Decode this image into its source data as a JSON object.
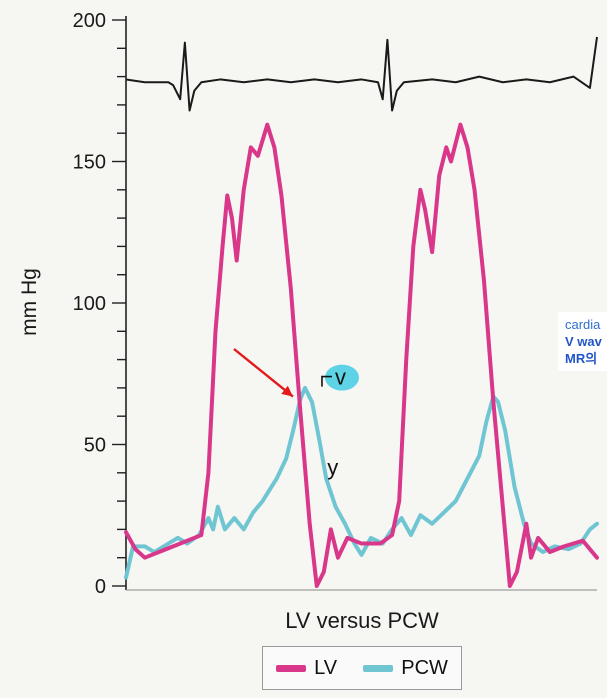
{
  "chart_data": {
    "type": "line",
    "title": "",
    "xlabel": "LV versus PCW",
    "ylabel": "mm Hg",
    "ylim": [
      0,
      200
    ],
    "yticks": [
      0,
      50,
      100,
      150,
      200
    ],
    "grid": false,
    "legend_placement": "bottom-center",
    "series": [
      {
        "name": "LV",
        "color": "#d9378a",
        "points": [
          [
            0,
            19
          ],
          [
            0.02,
            13
          ],
          [
            0.04,
            10
          ],
          [
            0.07,
            12
          ],
          [
            0.1,
            14
          ],
          [
            0.13,
            16
          ],
          [
            0.16,
            18
          ],
          [
            0.175,
            40
          ],
          [
            0.19,
            90
          ],
          [
            0.205,
            120
          ],
          [
            0.215,
            138
          ],
          [
            0.225,
            130
          ],
          [
            0.235,
            115
          ],
          [
            0.25,
            140
          ],
          [
            0.265,
            155
          ],
          [
            0.28,
            152
          ],
          [
            0.3,
            163
          ],
          [
            0.315,
            155
          ],
          [
            0.33,
            138
          ],
          [
            0.35,
            105
          ],
          [
            0.37,
            62
          ],
          [
            0.39,
            22
          ],
          [
            0.405,
            0
          ],
          [
            0.42,
            5
          ],
          [
            0.435,
            20
          ],
          [
            0.45,
            10
          ],
          [
            0.47,
            17
          ],
          [
            0.5,
            15
          ],
          [
            0.54,
            15
          ],
          [
            0.565,
            18
          ],
          [
            0.58,
            30
          ],
          [
            0.595,
            80
          ],
          [
            0.61,
            120
          ],
          [
            0.625,
            140
          ],
          [
            0.635,
            133
          ],
          [
            0.65,
            118
          ],
          [
            0.665,
            145
          ],
          [
            0.68,
            155
          ],
          [
            0.69,
            150
          ],
          [
            0.71,
            163
          ],
          [
            0.725,
            155
          ],
          [
            0.74,
            140
          ],
          [
            0.76,
            108
          ],
          [
            0.78,
            65
          ],
          [
            0.8,
            28
          ],
          [
            0.815,
            0
          ],
          [
            0.83,
            5
          ],
          [
            0.85,
            22
          ],
          [
            0.86,
            10
          ],
          [
            0.875,
            17
          ],
          [
            0.9,
            12
          ],
          [
            0.93,
            14
          ],
          [
            0.97,
            16
          ],
          [
            1.0,
            10
          ]
        ]
      },
      {
        "name": "PCW",
        "color": "#6fc6d2",
        "points": [
          [
            0,
            3
          ],
          [
            0.015,
            14
          ],
          [
            0.04,
            14
          ],
          [
            0.06,
            12
          ],
          [
            0.09,
            15
          ],
          [
            0.11,
            17
          ],
          [
            0.13,
            15
          ],
          [
            0.155,
            18
          ],
          [
            0.175,
            24
          ],
          [
            0.185,
            20
          ],
          [
            0.195,
            28
          ],
          [
            0.21,
            20
          ],
          [
            0.23,
            24
          ],
          [
            0.25,
            20
          ],
          [
            0.27,
            26
          ],
          [
            0.29,
            30
          ],
          [
            0.32,
            38
          ],
          [
            0.34,
            45
          ],
          [
            0.355,
            55
          ],
          [
            0.37,
            66
          ],
          [
            0.38,
            70
          ],
          [
            0.395,
            65
          ],
          [
            0.41,
            52
          ],
          [
            0.425,
            38
          ],
          [
            0.445,
            28
          ],
          [
            0.465,
            22
          ],
          [
            0.485,
            15
          ],
          [
            0.5,
            11
          ],
          [
            0.52,
            17
          ],
          [
            0.545,
            15
          ],
          [
            0.565,
            20
          ],
          [
            0.585,
            24
          ],
          [
            0.605,
            18
          ],
          [
            0.625,
            25
          ],
          [
            0.65,
            22
          ],
          [
            0.675,
            26
          ],
          [
            0.7,
            30
          ],
          [
            0.725,
            38
          ],
          [
            0.75,
            46
          ],
          [
            0.765,
            58
          ],
          [
            0.78,
            67
          ],
          [
            0.79,
            65
          ],
          [
            0.805,
            55
          ],
          [
            0.825,
            35
          ],
          [
            0.845,
            22
          ],
          [
            0.86,
            15
          ],
          [
            0.885,
            12
          ],
          [
            0.91,
            14
          ],
          [
            0.94,
            13
          ],
          [
            0.965,
            15
          ],
          [
            0.985,
            20
          ],
          [
            1.0,
            22
          ]
        ]
      }
    ],
    "annotations": [
      {
        "text": "v",
        "x": 0.38,
        "y": 74
      },
      {
        "text": "y",
        "x": 0.44,
        "y": 42
      }
    ]
  },
  "legend": {
    "items": [
      {
        "label": "LV",
        "color": "#d9378a"
      },
      {
        "label": "PCW",
        "color": "#6fc6d2"
      }
    ]
  },
  "side_note": {
    "line1": "cardia",
    "line2": "V wav",
    "line3": "MR의"
  }
}
